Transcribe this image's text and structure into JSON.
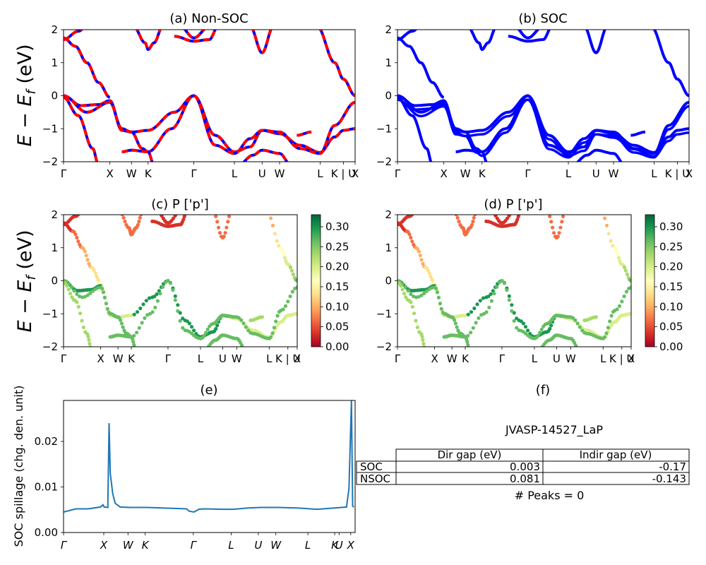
{
  "figure": {
    "panels": {
      "a": {
        "title": "(a) Non-SOC",
        "ylabel": "E − E"
      },
      "b": {
        "title": "(b) SOC"
      },
      "c": {
        "title": "(c)  P ['p']",
        "ylabel": "E − E"
      },
      "d": {
        "title": "(d) P ['p']"
      },
      "e": {
        "title": "(e)",
        "ylabel": "SOC spillage (chg. den. unit)"
      },
      "f": {
        "title": "(f)"
      }
    },
    "ylabel_subscript": "f",
    "ylabel_unit": " (eV)",
    "kpath_labels": [
      "Γ",
      "X",
      "W",
      "K",
      "Γ",
      "L",
      "U",
      "W",
      "L",
      "K | U",
      "X"
    ],
    "kpath_labels_cd": [
      "Γ",
      "X",
      "W",
      "K",
      "Γ",
      "L",
      "U",
      "W",
      "L",
      "K | U",
      "X"
    ],
    "kpath_labels_e": [
      "Γ",
      "X",
      "W",
      "K",
      "Γ",
      "L",
      "U",
      "W",
      "L",
      "K",
      "U",
      "X"
    ],
    "energy_ticks": [
      "2",
      "1",
      "0",
      "−1",
      "−2"
    ],
    "colorbar_ticks": [
      "0.30",
      "0.25",
      "0.20",
      "0.15",
      "0.10",
      "0.05",
      "0.00"
    ],
    "spillage_ticks": [
      "0.02",
      "0.01",
      "0.00"
    ],
    "colors": {
      "soc_band": "#0000ff",
      "nsoc_band": "#ff0000",
      "spillage": "#1f77b4"
    }
  },
  "gap_table": {
    "material": "JVASP-14527_LaP",
    "headers": [
      "Dir gap (eV)",
      "Indir gap (eV)"
    ],
    "rows": [
      {
        "label": "SOC",
        "dir": "0.003",
        "indir": "-0.17"
      },
      {
        "label": "NSOC",
        "dir": "0.081",
        "indir": "-0.143"
      }
    ],
    "peaks": "# Peaks = 0"
  },
  "chart_data": [
    {
      "type": "line",
      "title": "(a) Non-SOC",
      "ylabel": "E − E_f (eV)",
      "ylim": [
        -2,
        2
      ],
      "kpath": [
        "Γ",
        "X",
        "W",
        "K",
        "Γ",
        "L",
        "U",
        "W",
        "L",
        "K|U",
        "X"
      ],
      "series": [
        {
          "k": [
            0,
            1.85,
            2.7,
            3.4,
            5.3,
            6.9,
            8.0,
            8.7,
            10.3,
            11.3,
            11.8
          ],
          "values": [
            0.0,
            -0.2,
            -1.05,
            -1.1,
            0.0,
            -1.7,
            -1.05,
            -1.1,
            -1.7,
            -1.05,
            -1.0
          ]
        },
        {
          "k": [
            0,
            1.85,
            2.7,
            3.4,
            5.3,
            6.9,
            8.0,
            8.7,
            10.3,
            11.3,
            11.8
          ],
          "values": [
            1.7,
            2.0,
            2.0,
            1.3,
            1.7,
            2.0,
            1.3,
            2.0,
            2.0,
            2.0,
            0.0
          ]
        }
      ]
    },
    {
      "type": "line",
      "title": "(b) SOC",
      "ylim": [
        -2,
        2
      ]
    },
    {
      "type": "scatter",
      "title": "(c)  P ['p']",
      "ylim": [
        -2,
        2
      ],
      "colorbar": {
        "min": 0.0,
        "max": 0.33
      }
    },
    {
      "type": "scatter",
      "title": "(d) P ['p']",
      "ylim": [
        -2,
        2
      ],
      "colorbar": {
        "min": 0.0,
        "max": 0.33
      }
    },
    {
      "type": "line",
      "title": "(e)",
      "ylabel": "SOC spillage (chg. den. unit)",
      "ylim": [
        0.0,
        0.029
      ],
      "x": [
        0.0,
        0.5,
        1.0,
        1.5,
        1.6,
        1.65,
        1.8,
        1.85,
        1.9,
        2.0,
        2.1,
        2.3,
        2.7,
        3.4,
        4.0,
        5.0,
        5.1,
        5.3,
        5.5,
        5.7,
        6.5,
        6.9,
        7.5,
        8.0,
        8.7,
        9.5,
        10.3,
        11.3,
        11.5,
        11.6,
        11.7,
        11.75,
        11.8
      ],
      "values": [
        0.0045,
        0.0052,
        0.0052,
        0.0056,
        0.0061,
        0.0056,
        0.0055,
        0.024,
        0.013,
        0.0085,
        0.0064,
        0.0056,
        0.0055,
        0.0055,
        0.0054,
        0.0052,
        0.0047,
        0.0045,
        0.0051,
        0.0052,
        0.0051,
        0.0051,
        0.0054,
        0.0055,
        0.0055,
        0.0054,
        0.0051,
        0.0055,
        0.0056,
        0.0097,
        0.029,
        0.0058,
        0.0056
      ]
    }
  ]
}
